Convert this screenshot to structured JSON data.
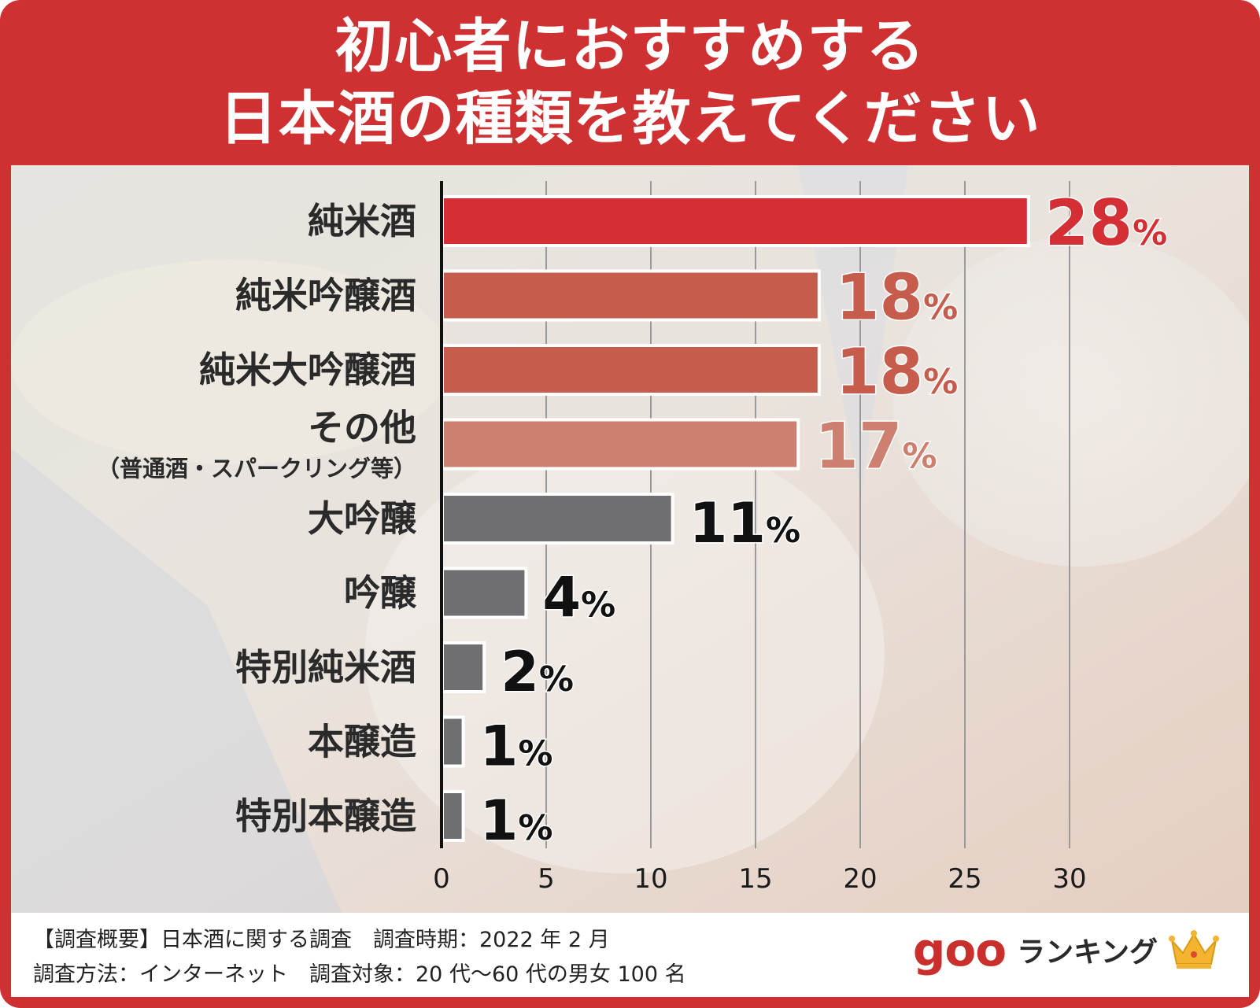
{
  "title_lines": [
    "初心者におすすめする",
    "日本酒の種類を教えてください"
  ],
  "colors": {
    "frame": "#cf3032",
    "bar_top": "#d42f34",
    "bar_second": "#c65c4c",
    "bar_third": "#cd8070",
    "bar_gray": "#6f6e70",
    "label_dark": "#111111",
    "logo_red": "#c9302c",
    "crown": "#f2b431"
  },
  "chart_data": {
    "type": "bar",
    "orientation": "horizontal",
    "title": "初心者におすすめする日本酒の種類を教えてください",
    "categories": [
      "純米酒",
      "純米吟醸酒",
      "純米大吟醸酒",
      "その他",
      "大吟醸",
      "吟醸",
      "特別純米酒",
      "本醸造",
      "特別本醸造"
    ],
    "category_sublabels": [
      "",
      "",
      "",
      "（普通酒・スパークリング等）",
      "",
      "",
      "",
      "",
      ""
    ],
    "values": [
      28,
      18,
      18,
      17,
      11,
      4,
      2,
      1,
      1
    ],
    "value_labels": [
      "28",
      "18",
      "18",
      "17",
      "11",
      "4",
      "2",
      "1",
      "1"
    ],
    "unit": "%",
    "xlim": [
      0,
      30
    ],
    "xticks": [
      "0",
      "5",
      "10",
      "15",
      "20",
      "25",
      "30"
    ],
    "grid": true,
    "legend": "none"
  },
  "footer": {
    "line1": "【調査概要】日本酒に関する調査　調査時期：2022 年 2 月",
    "line2": "調査方法：インターネット　調査対象：20 代〜60 代の男女 100 名"
  },
  "logo": {
    "goo": "goo",
    "ranking": "ランキング",
    "crown_icon": "crown-icon"
  }
}
